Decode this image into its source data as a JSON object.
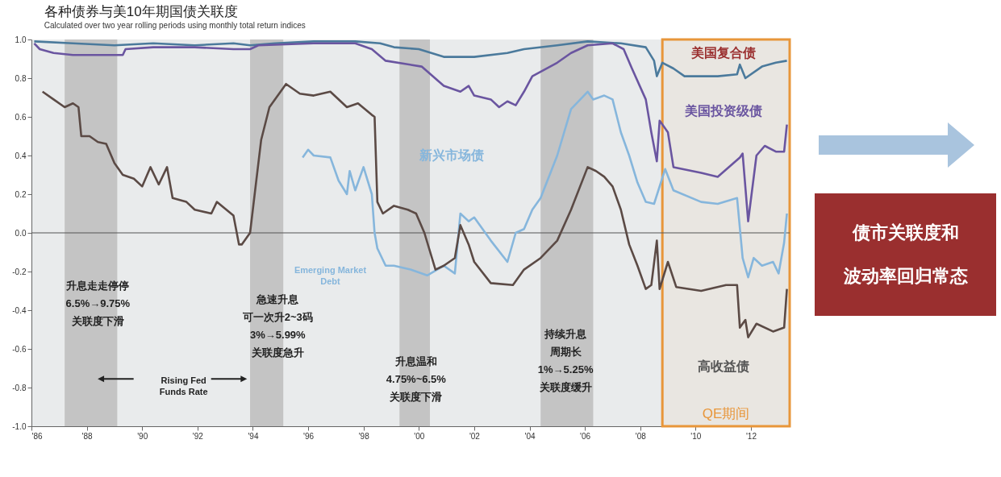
{
  "chart_data": {
    "type": "line",
    "title": "各种债券与美10年期国债关联度",
    "subtitle": "Calculated over two year rolling periods using monthly total return indices",
    "xlim": [
      1986,
      2013.4
    ],
    "xticks": [
      {
        "value": 1986,
        "label": "'86"
      },
      {
        "value": 1988,
        "label": "'88"
      },
      {
        "value": 1990,
        "label": "'90"
      },
      {
        "value": 1992,
        "label": "'92"
      },
      {
        "value": 1994,
        "label": "'94"
      },
      {
        "value": 1996,
        "label": "'96"
      },
      {
        "value": 1998,
        "label": "'98"
      },
      {
        "value": 2000,
        "label": "'00"
      },
      {
        "value": 2002,
        "label": "'02"
      },
      {
        "value": 2004,
        "label": "'04"
      },
      {
        "value": 2006,
        "label": "'06"
      },
      {
        "value": 2008,
        "label": "'08"
      },
      {
        "value": 2010,
        "label": "'10"
      },
      {
        "value": 2012,
        "label": "'12"
      }
    ],
    "ylim": [
      -1,
      1
    ],
    "yticks": [
      {
        "value": -1,
        "label": "-1.0"
      },
      {
        "value": -0.8,
        "label": "-0.8"
      },
      {
        "value": -0.6,
        "label": "-0.6"
      },
      {
        "value": -0.4,
        "label": "-0.4"
      },
      {
        "value": -0.2,
        "label": "-0.2"
      },
      {
        "value": 0,
        "label": "0.0"
      },
      {
        "value": 0.2,
        "label": "0.2"
      },
      {
        "value": 0.4,
        "label": "0.4"
      },
      {
        "value": 0.6,
        "label": "0.6"
      },
      {
        "value": 0.8,
        "label": "0.8"
      },
      {
        "value": 1,
        "label": "1.0"
      }
    ],
    "series": [
      {
        "name": "美国复合债",
        "color": "#4b7a9c",
        "x": [
          1986.1,
          1987.5,
          1989.0,
          1990.4,
          1991.9,
          1993.3,
          1993.9,
          1994.8,
          1996.2,
          1997.7,
          1998.6,
          1999.1,
          2000.0,
          2000.9,
          2002.0,
          2003.2,
          2003.8,
          2005.0,
          2006.1,
          2007.3,
          2008.2,
          2008.5,
          2008.6,
          2008.8,
          2009.2,
          2009.6,
          2010.8,
          2011.5,
          2011.6,
          2011.8,
          2012.4,
          2012.9,
          2013.3
        ],
        "values": [
          0.99,
          0.98,
          0.97,
          0.98,
          0.97,
          0.98,
          0.97,
          0.98,
          0.99,
          0.99,
          0.98,
          0.96,
          0.95,
          0.91,
          0.91,
          0.93,
          0.95,
          0.97,
          0.99,
          0.98,
          0.96,
          0.89,
          0.81,
          0.88,
          0.85,
          0.81,
          0.81,
          0.82,
          0.87,
          0.8,
          0.86,
          0.88,
          0.89
        ]
      },
      {
        "name": "美国投资级债",
        "color": "#6a55a0",
        "x": [
          1986.1,
          1986.3,
          1986.8,
          1987.5,
          1988.7,
          1989.0,
          1989.3,
          1989.4,
          1990.4,
          1991.9,
          1993.3,
          1993.9,
          1994.2,
          1996.2,
          1997.7,
          1998.3,
          1998.8,
          2000.1,
          2000.9,
          2001.5,
          2001.8,
          2002.0,
          2002.6,
          2002.9,
          2003.2,
          2003.5,
          2003.8,
          2004.1,
          2005.0,
          2005.5,
          2006.1,
          2007.0,
          2007.4,
          2007.7,
          2008.2,
          2008.4,
          2008.6,
          2008.7,
          2008.8,
          2009.0,
          2009.2,
          2010.2,
          2010.8,
          2011.6,
          2011.7,
          2011.9,
          2012.2,
          2012.5,
          2012.9,
          2013.2,
          2013.3
        ],
        "values": [
          0.98,
          0.95,
          0.93,
          0.92,
          0.92,
          0.92,
          0.92,
          0.95,
          0.96,
          0.96,
          0.95,
          0.95,
          0.97,
          0.98,
          0.98,
          0.95,
          0.89,
          0.86,
          0.76,
          0.73,
          0.76,
          0.71,
          0.69,
          0.65,
          0.68,
          0.66,
          0.73,
          0.81,
          0.88,
          0.93,
          0.97,
          0.98,
          0.95,
          0.85,
          0.69,
          0.52,
          0.37,
          0.58,
          0.56,
          0.52,
          0.34,
          0.31,
          0.29,
          0.39,
          0.41,
          0.06,
          0.4,
          0.45,
          0.42,
          0.42,
          0.56
        ]
      },
      {
        "name": "新兴市场债",
        "color": "#86b6dc",
        "x": [
          1995.8,
          1996.0,
          1996.2,
          1996.8,
          1997.1,
          1997.4,
          1997.5,
          1997.7,
          1998.0,
          1998.3,
          1998.4,
          1998.5,
          1998.8,
          1999.1,
          1999.7,
          2000.3,
          2000.9,
          2001.3,
          2001.5,
          2001.8,
          2002.0,
          2002.6,
          2003.2,
          2003.5,
          2003.8,
          2004.1,
          2004.4,
          2005.0,
          2005.5,
          2006.1,
          2006.3,
          2006.7,
          2007.0,
          2007.3,
          2007.6,
          2007.9,
          2008.2,
          2008.5,
          2008.9,
          2009.2,
          2010.2,
          2010.8,
          2011.5,
          2011.7,
          2011.9,
          2012.1,
          2012.4,
          2012.8,
          2013.0,
          2013.2,
          2013.3
        ],
        "values": [
          0.39,
          0.43,
          0.4,
          0.39,
          0.27,
          0.2,
          0.32,
          0.22,
          0.34,
          0.2,
          0.0,
          -0.08,
          -0.17,
          -0.17,
          -0.19,
          -0.22,
          -0.17,
          -0.21,
          0.1,
          0.06,
          0.08,
          -0.04,
          -0.15,
          0.0,
          0.02,
          0.12,
          0.18,
          0.4,
          0.64,
          0.73,
          0.69,
          0.71,
          0.69,
          0.52,
          0.4,
          0.26,
          0.16,
          0.15,
          0.33,
          0.22,
          0.16,
          0.15,
          0.18,
          -0.13,
          -0.23,
          -0.13,
          -0.17,
          -0.15,
          -0.21,
          -0.05,
          0.1
        ]
      },
      {
        "name": "高收益债",
        "color": "#5b4a45",
        "x": [
          1986.4,
          1986.8,
          1987.2,
          1987.5,
          1987.7,
          1987.8,
          1988.1,
          1988.4,
          1988.7,
          1989.0,
          1989.3,
          1989.7,
          1990.0,
          1990.3,
          1990.6,
          1990.9,
          1991.1,
          1991.6,
          1991.9,
          1992.5,
          1992.7,
          1993.3,
          1993.5,
          1993.6,
          1993.9,
          1994.1,
          1994.3,
          1994.6,
          1995.2,
          1995.7,
          1996.2,
          1996.8,
          1997.4,
          1997.8,
          1998.3,
          1998.4,
          1998.5,
          1998.7,
          1999.1,
          1999.6,
          1999.9,
          2000.2,
          2000.6,
          2000.9,
          2001.3,
          2001.5,
          2001.8,
          2002.0,
          2002.6,
          2003.4,
          2003.8,
          2004.4,
          2005.0,
          2005.5,
          2006.1,
          2006.4,
          2006.7,
          2007.0,
          2007.3,
          2007.6,
          2007.9,
          2008.2,
          2008.4,
          2008.6,
          2008.7,
          2009.0,
          2009.3,
          2010.2,
          2011.1,
          2011.5,
          2011.6,
          2011.8,
          2011.9,
          2012.2,
          2012.8,
          2013.2,
          2013.3
        ],
        "values": [
          0.73,
          0.69,
          0.65,
          0.67,
          0.65,
          0.5,
          0.5,
          0.47,
          0.46,
          0.36,
          0.3,
          0.28,
          0.24,
          0.34,
          0.25,
          0.34,
          0.18,
          0.16,
          0.12,
          0.1,
          0.16,
          0.09,
          -0.06,
          -0.06,
          0.0,
          0.24,
          0.48,
          0.65,
          0.77,
          0.72,
          0.71,
          0.73,
          0.65,
          0.67,
          0.61,
          0.6,
          0.16,
          0.1,
          0.14,
          0.12,
          0.1,
          0.0,
          -0.19,
          -0.17,
          -0.13,
          0.04,
          -0.06,
          -0.15,
          -0.26,
          -0.27,
          -0.19,
          -0.13,
          -0.04,
          0.12,
          0.34,
          0.32,
          0.29,
          0.24,
          0.12,
          -0.06,
          -0.17,
          -0.29,
          -0.27,
          -0.04,
          -0.29,
          -0.15,
          -0.28,
          -0.3,
          -0.27,
          -0.27,
          -0.49,
          -0.45,
          -0.54,
          -0.47,
          -0.51,
          -0.49,
          -0.29
        ]
      }
    ],
    "ref_lines": [
      {
        "axis": "y",
        "value": 0,
        "color": "#555555"
      }
    ],
    "bands": [
      {
        "axis": "x",
        "from": 1987.2,
        "to": 1989.1,
        "color": "#c4c4c4"
      },
      {
        "axis": "x",
        "from": 1993.9,
        "to": 1995.1,
        "color": "#c4c4c4"
      },
      {
        "axis": "x",
        "from": 1999.3,
        "to": 2000.4,
        "color": "#c4c4c4"
      },
      {
        "axis": "x",
        "from": 2004.4,
        "to": 2006.3,
        "color": "#c4c4c4"
      },
      {
        "axis": "x",
        "from": 2008.8,
        "to": 2013.4,
        "label": "QE期间",
        "color": "#e8963a"
      }
    ],
    "annotations": [
      "升息走走停停6.5%→9.75%关联度下滑",
      "急速升息可一次升2~3码3%→5.99%关联度急升",
      "升息温和4.75%~6.5%关联度下滑",
      "持续升息周期长1%→5.25%关联度缓升",
      "Rising Fed Funds Rate",
      "Emerging Market Debt",
      "债市关联度和波动率回归常态"
    ]
  }
}
